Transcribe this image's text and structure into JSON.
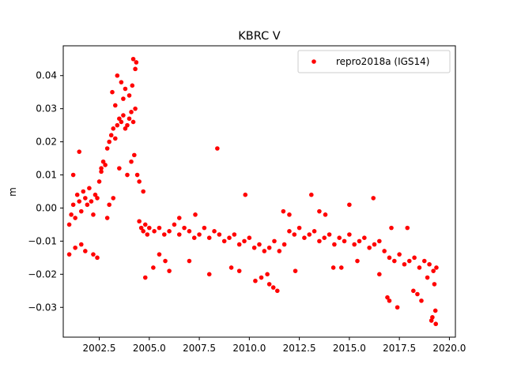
{
  "chart_data": {
    "type": "scatter",
    "title": "KBRC V",
    "xlabel": "",
    "ylabel": "m",
    "xlim": [
      2000.7,
      2020.3
    ],
    "ylim": [
      -0.039,
      0.049
    ],
    "xticks": [
      2002.5,
      2005.0,
      2007.5,
      2010.0,
      2012.5,
      2015.0,
      2017.5,
      2020.0
    ],
    "xtick_labels": [
      "2002.5",
      "2005.0",
      "2007.5",
      "2010.0",
      "2012.5",
      "2015.0",
      "2017.5",
      "2020.0"
    ],
    "yticks": [
      -0.03,
      -0.02,
      -0.01,
      0.0,
      0.01,
      0.02,
      0.03,
      0.04
    ],
    "ytick_labels": [
      "−0.03",
      "−0.02",
      "−0.01",
      "0.00",
      "0.01",
      "0.02",
      "0.03",
      "0.04"
    ],
    "grid": false,
    "legend_position": "top-right",
    "series": [
      {
        "name": "repro2018a (IGS14)",
        "color": "#ff0000",
        "marker": "circle",
        "x": [
          2001.0,
          2001.1,
          2001.2,
          2001.3,
          2001.4,
          2001.5,
          2001.6,
          2001.7,
          2001.8,
          2001.9,
          2002.0,
          2002.1,
          2002.2,
          2002.3,
          2002.4,
          2002.5,
          2002.6,
          2002.7,
          2002.8,
          2002.9,
          2003.0,
          2003.1,
          2003.2,
          2003.3,
          2003.4,
          2003.5,
          2003.6,
          2003.7,
          2003.8,
          2003.9,
          2004.0,
          2004.1,
          2004.2,
          2004.3,
          2004.4,
          2004.5,
          2004.6,
          2004.7,
          2004.8,
          2004.9,
          2005.0,
          2005.25,
          2005.5,
          2005.75,
          2006.0,
          2006.25,
          2006.5,
          2006.75,
          2007.0,
          2007.25,
          2007.5,
          2007.75,
          2008.0,
          2008.25,
          2008.5,
          2008.75,
          2009.0,
          2009.25,
          2009.5,
          2009.75,
          2010.0,
          2010.25,
          2010.5,
          2010.75,
          2011.0,
          2011.25,
          2011.5,
          2011.75,
          2012.0,
          2012.25,
          2012.5,
          2012.75,
          2013.0,
          2013.25,
          2013.5,
          2013.75,
          2014.0,
          2014.25,
          2014.5,
          2014.75,
          2015.0,
          2015.25,
          2015.5,
          2015.75,
          2016.0,
          2016.25,
          2016.5,
          2016.75,
          2017.0,
          2017.25,
          2017.5,
          2017.75,
          2018.0,
          2018.25,
          2018.5,
          2018.75,
          2019.0,
          2019.2,
          2019.35,
          2001.2,
          2001.3,
          2001.5,
          2001.8,
          2002.2,
          2002.6,
          2002.9,
          2003.15,
          2003.4,
          2003.6,
          2003.8,
          2004.0,
          2004.2,
          2004.3,
          2003.5,
          2003.9,
          2004.1,
          2004.25,
          2003.3,
          2003.7,
          2004.5,
          2004.7,
          2005.2,
          2005.8,
          2006.5,
          2007.3,
          2008.4,
          2009.1,
          2009.8,
          2010.6,
          2011.0,
          2011.7,
          2012.3,
          2013.1,
          2013.8,
          2014.6,
          2015.4,
          2016.2,
          2016.9,
          2017.4,
          2017.9,
          2018.6,
          2019.1,
          2019.3,
          2001.0,
          2001.6,
          2002.4,
          2004.8,
          2006.0,
          2007.0,
          2008.0,
          2009.5,
          2010.3,
          2011.4,
          2012.0,
          2013.5,
          2014.2,
          2015.0,
          2016.5,
          2017.1,
          2018.2,
          2018.9,
          2019.25,
          2003.0,
          2003.2,
          2004.15,
          2004.35,
          2005.5,
          2010.9,
          2011.2,
          2017.0,
          2018.4,
          2019.15,
          2019.32
        ],
        "y": [
          -0.005,
          -0.002,
          0.001,
          -0.003,
          0.004,
          0.002,
          -0.001,
          0.005,
          0.003,
          0.001,
          0.006,
          0.002,
          -0.002,
          0.004,
          0.003,
          0.008,
          0.012,
          0.014,
          0.013,
          0.018,
          0.02,
          0.022,
          0.024,
          0.021,
          0.025,
          0.027,
          0.026,
          0.028,
          0.024,
          0.025,
          0.027,
          0.029,
          0.026,
          0.03,
          0.01,
          -0.004,
          -0.006,
          -0.007,
          -0.005,
          -0.008,
          -0.006,
          -0.007,
          -0.006,
          -0.008,
          -0.007,
          -0.005,
          -0.008,
          -0.006,
          -0.007,
          -0.009,
          -0.008,
          -0.006,
          -0.009,
          -0.007,
          -0.008,
          -0.01,
          -0.009,
          -0.008,
          -0.011,
          -0.01,
          -0.009,
          -0.012,
          -0.011,
          -0.013,
          -0.012,
          -0.01,
          -0.013,
          -0.011,
          -0.007,
          -0.008,
          -0.006,
          -0.009,
          -0.008,
          -0.007,
          -0.01,
          -0.009,
          -0.008,
          -0.011,
          -0.009,
          -0.01,
          -0.008,
          -0.011,
          -0.01,
          -0.009,
          -0.012,
          -0.011,
          -0.01,
          -0.013,
          -0.015,
          -0.016,
          -0.014,
          -0.017,
          -0.016,
          -0.015,
          -0.018,
          -0.016,
          -0.017,
          -0.019,
          -0.018,
          0.01,
          -0.012,
          0.017,
          -0.013,
          -0.014,
          0.011,
          -0.003,
          0.035,
          0.04,
          0.038,
          0.036,
          0.034,
          0.045,
          0.042,
          0.012,
          0.01,
          0.014,
          0.016,
          0.031,
          0.033,
          0.008,
          0.005,
          -0.018,
          -0.016,
          -0.003,
          -0.002,
          0.018,
          -0.018,
          0.004,
          -0.021,
          -0.023,
          -0.001,
          -0.019,
          0.004,
          -0.002,
          -0.018,
          -0.016,
          0.003,
          -0.027,
          -0.03,
          -0.006,
          -0.028,
          -0.034,
          -0.031,
          -0.014,
          -0.011,
          -0.015,
          -0.021,
          -0.019,
          -0.016,
          -0.02,
          -0.019,
          -0.022,
          -0.025,
          -0.002,
          -0.001,
          -0.018,
          0.001,
          -0.02,
          -0.006,
          -0.025,
          -0.021,
          -0.023,
          0.001,
          0.003,
          0.037,
          0.044,
          -0.014,
          -0.02,
          -0.024,
          -0.028,
          -0.026,
          -0.033,
          -0.035
        ]
      }
    ]
  }
}
